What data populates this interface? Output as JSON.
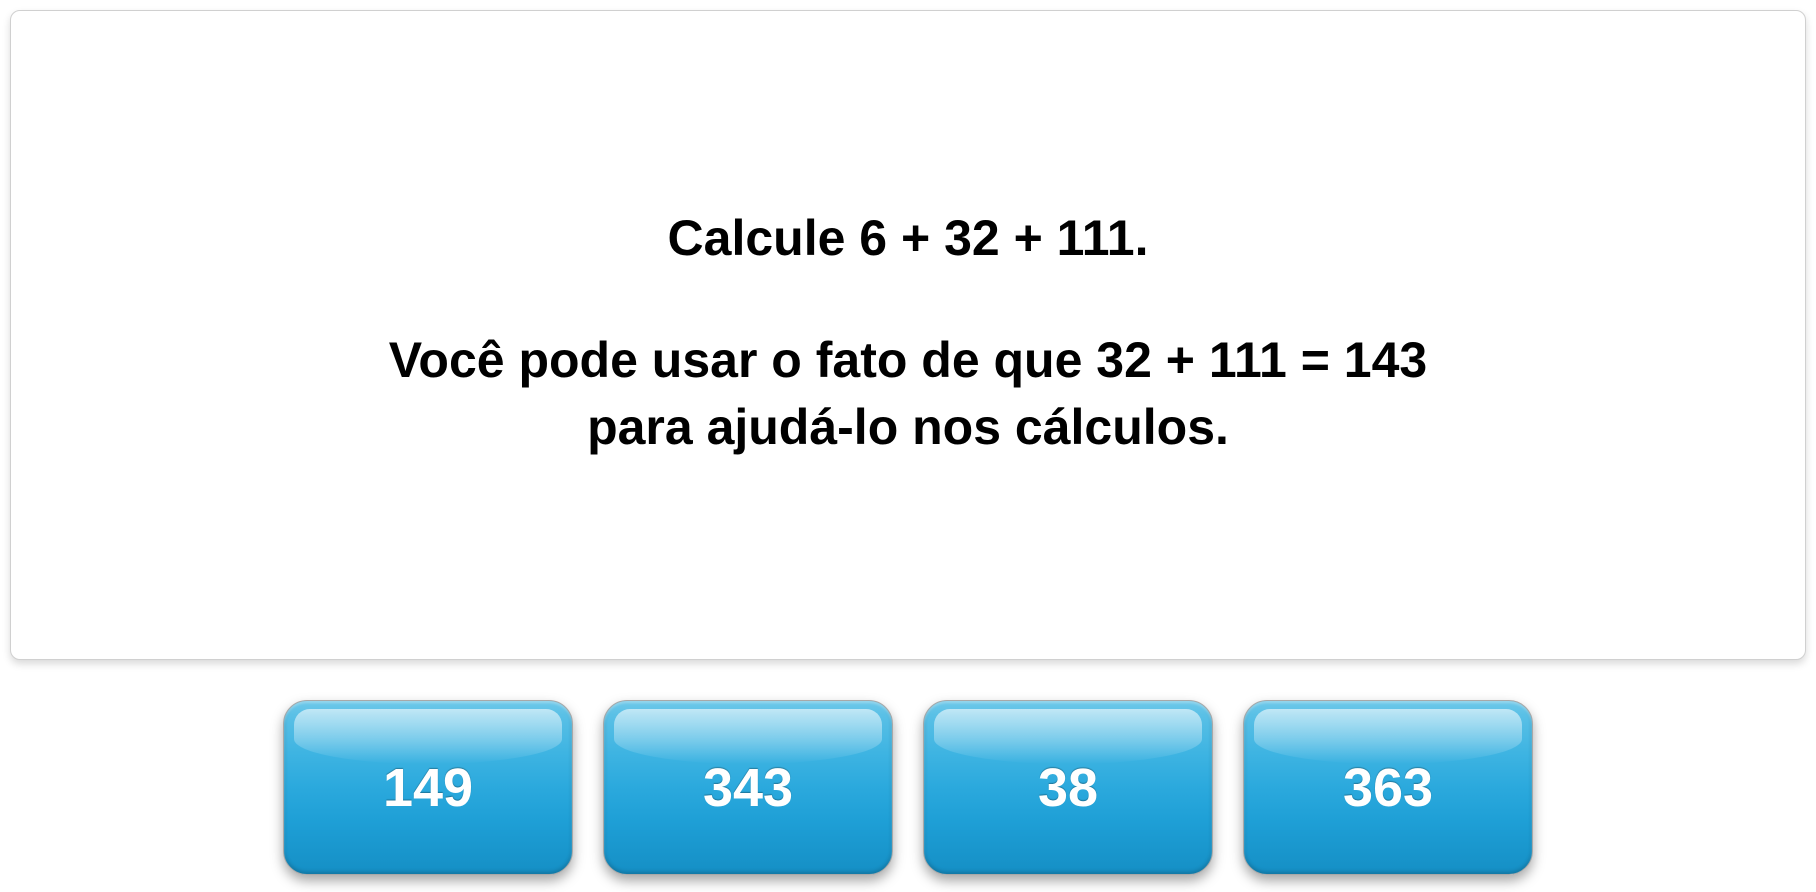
{
  "question": {
    "line1": "Calcule 6 + 32 + 111.",
    "line2": "Você pode usar o fato de que 32 + 111  =  143\npara ajudá-lo nos cálculos."
  },
  "answers": [
    {
      "label": "149"
    },
    {
      "label": "343"
    },
    {
      "label": "38"
    },
    {
      "label": "363"
    }
  ],
  "styling": {
    "question_fontsize": 50,
    "question_fontweight": "bold",
    "question_color": "#000000",
    "panel_background": "#ffffff",
    "panel_border_color": "#d0d0d0",
    "panel_border_radius": 10,
    "button_width": 290,
    "button_height": 175,
    "button_border_radius": 24,
    "button_gap": 30,
    "button_gradient_top": "#6fc9ea",
    "button_gradient_bottom": "#158fc5",
    "button_text_color": "#ffffff",
    "button_text_fontsize": 54,
    "button_text_fontweight": "bold",
    "button_border_color": "#a8a8a8"
  }
}
